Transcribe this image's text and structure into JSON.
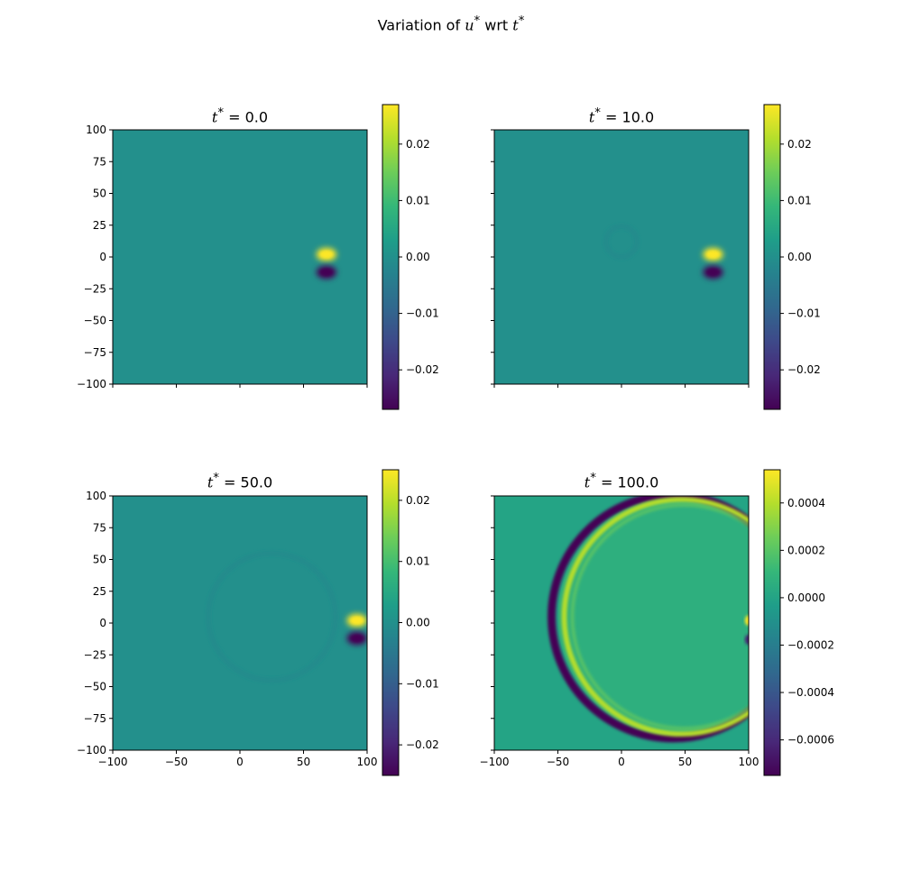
{
  "figure": {
    "suptitle_prefix": "Variation of",
    "suptitle_var": "u",
    "suptitle_mid": "wrt",
    "suptitle_var2": "t",
    "superscript": "*"
  },
  "chart_data": [
    {
      "type": "heatmap",
      "title": "t* = 0.0",
      "title_var": "t",
      "title_value": "0.0",
      "colormap": "viridis",
      "xlim": [
        -100,
        100
      ],
      "ylim": [
        -100,
        100
      ],
      "xticks": [
        -100,
        -50,
        0,
        50,
        100
      ],
      "yticks": [
        100,
        75,
        50,
        25,
        0,
        -25,
        -50,
        -75,
        -100
      ],
      "show_xticklabels": false,
      "show_yticklabels": true,
      "colorbar": {
        "min": -0.027,
        "max": 0.027,
        "ticks": [
          0.02,
          0.01,
          0.0,
          -0.01,
          -0.02
        ],
        "ticklabels": [
          "0.02",
          "0.01",
          "0.00",
          "−0.01",
          "−0.02"
        ]
      },
      "features": [
        {
          "kind": "dipole",
          "x": 68,
          "y_pos": 2,
          "y_neg": -12,
          "amp": 0.027
        }
      ]
    },
    {
      "type": "heatmap",
      "title": "t* = 10.0",
      "title_var": "t",
      "title_value": "10.0",
      "colormap": "viridis",
      "xlim": [
        -100,
        100
      ],
      "ylim": [
        -100,
        100
      ],
      "xticks": [
        -100,
        -50,
        0,
        50,
        100
      ],
      "yticks": [
        100,
        75,
        50,
        25,
        0,
        -25,
        -50,
        -75,
        -100
      ],
      "show_xticklabels": false,
      "show_yticklabels": false,
      "colorbar": {
        "min": -0.027,
        "max": 0.027,
        "ticks": [
          0.02,
          0.01,
          0.0,
          -0.01,
          -0.02
        ],
        "ticklabels": [
          "0.02",
          "0.01",
          "0.00",
          "−0.01",
          "−0.02"
        ]
      },
      "features": [
        {
          "kind": "dipole",
          "x": 72,
          "y_pos": 2,
          "y_neg": -12,
          "amp": 0.027
        },
        {
          "kind": "ring",
          "cx": 0,
          "cy": 12,
          "r": 12,
          "amp": -0.001
        }
      ]
    },
    {
      "type": "heatmap",
      "title": "t* = 50.0",
      "title_var": "t",
      "title_value": "50.0",
      "colormap": "viridis",
      "xlim": [
        -100,
        100
      ],
      "ylim": [
        -100,
        100
      ],
      "xticks": [
        -100,
        -50,
        0,
        50,
        100
      ],
      "yticks": [
        100,
        75,
        50,
        25,
        0,
        -25,
        -50,
        -75,
        -100
      ],
      "show_xticklabels": true,
      "show_yticklabels": true,
      "colorbar": {
        "min": -0.025,
        "max": 0.025,
        "ticks": [
          0.02,
          0.01,
          0.0,
          -0.01,
          -0.02
        ],
        "ticklabels": [
          "0.02",
          "0.01",
          "0.00",
          "−0.01",
          "−0.02"
        ]
      },
      "features": [
        {
          "kind": "dipole",
          "x": 92,
          "y_pos": 2,
          "y_neg": -12,
          "amp": 0.025
        },
        {
          "kind": "ring",
          "cx": 25,
          "cy": 5,
          "r": 50,
          "amp": -0.001
        }
      ]
    },
    {
      "type": "heatmap",
      "title": "t* = 100.0",
      "title_var": "t",
      "title_value": "100.0",
      "colormap": "viridis",
      "xlim": [
        -100,
        100
      ],
      "ylim": [
        -100,
        100
      ],
      "xticks": [
        -100,
        -50,
        0,
        50,
        100
      ],
      "yticks": [
        100,
        75,
        50,
        25,
        0,
        -25,
        -50,
        -75,
        -100
      ],
      "show_xticklabels": true,
      "show_yticklabels": false,
      "colorbar": {
        "min": -0.00075,
        "max": 0.00054,
        "ticks": [
          0.0004,
          0.0002,
          0.0,
          -0.0002,
          -0.0004,
          -0.0006
        ],
        "ticklabels": [
          "0.0004",
          "0.0002",
          "0.0000",
          "−0.0002",
          "−0.0004",
          "−0.0006"
        ]
      },
      "features": [
        {
          "kind": "ring_front",
          "cx": 45,
          "cy": 5,
          "r": 95,
          "amp_neg": -0.00075,
          "amp_pos": 0.0004
        },
        {
          "kind": "edge_dipole",
          "x": 100,
          "y_pos": 2,
          "y_neg": -13,
          "amp": 0.0005
        }
      ]
    }
  ]
}
